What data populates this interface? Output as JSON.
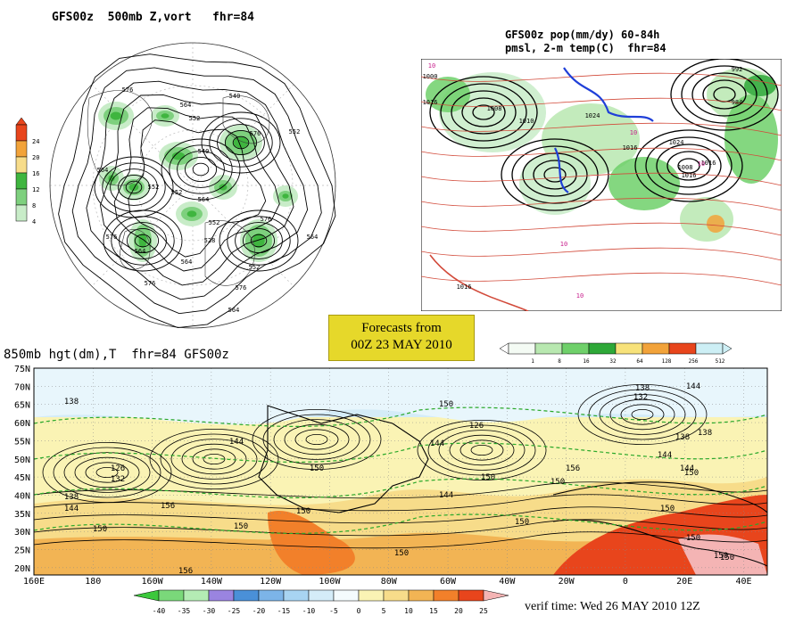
{
  "panel_500mb": {
    "title": "GFS00z  500mb Z,vort   fhr=84",
    "contour_labels": [
      "576",
      "564",
      "552",
      "540",
      "576",
      "552",
      "564",
      "552",
      "540",
      "552",
      "564",
      "576",
      "552",
      "576",
      "528",
      "564",
      "564",
      "552",
      "576",
      "576",
      "564",
      "564"
    ],
    "scale_values": [
      "24",
      "20",
      "16",
      "12",
      "8",
      "4"
    ],
    "scale_colors": [
      "#e8451c",
      "#f2a33a",
      "#f7dc8a",
      "#3fb53f",
      "#7ed07e",
      "#c8ecc8"
    ]
  },
  "panel_pop": {
    "title_line1": "GFS00z pop(mm/dy) 60-84h",
    "title_line2": "pmsl, 2-m temp(C)  fhr=84",
    "contour_labels": [
      "10",
      "1000",
      "1016",
      "1008",
      "1010",
      "1024",
      "10",
      "1016",
      "1024",
      "1008",
      "1016",
      "10",
      "10",
      "10",
      "1016",
      "992",
      "984",
      "1016"
    ],
    "scale_values": [
      "1",
      "8",
      "16",
      "32",
      "64",
      "128",
      "256",
      "512"
    ],
    "scale_colors": [
      "#f4fbf4",
      "#b8e8b0",
      "#6fd06a",
      "#2ea838",
      "#f7e27a",
      "#f2a33a",
      "#e8451c",
      "#cdeff5"
    ]
  },
  "banner": {
    "line1": "Forecasts from",
    "line2": "00Z 23 MAY 2010"
  },
  "panel_850mb": {
    "title": "850mb hgt(dm),T  fhr=84 GFS00z",
    "lat_labels": [
      "75N",
      "70N",
      "65N",
      "60N",
      "55N",
      "50N",
      "45N",
      "40N",
      "35N",
      "30N",
      "25N",
      "20N"
    ],
    "lon_labels": [
      "160E",
      "180",
      "160W",
      "140W",
      "120W",
      "100W",
      "80W",
      "60W",
      "40W",
      "20W",
      "0",
      "20E",
      "40E"
    ],
    "contour_labels": [
      "138",
      "126",
      "132",
      "138",
      "144",
      "150",
      "144",
      "156",
      "150",
      "156",
      "150",
      "150",
      "150",
      "144",
      "150",
      "150",
      "138",
      "144",
      "132",
      "126",
      "150",
      "144",
      "150",
      "156",
      "150",
      "138",
      "144",
      "138",
      "150",
      "144",
      "150",
      "150",
      "150"
    ],
    "scale_values": [
      "-40",
      "-35",
      "-30",
      "-25",
      "-20",
      "-15",
      "-10",
      "-5",
      "0",
      "5",
      "10",
      "15",
      "20",
      "25"
    ],
    "scale_colors": [
      "#3cc83c",
      "#7ad87a",
      "#b4ecb4",
      "#9a84e0",
      "#4a90d8",
      "#7cb4e8",
      "#a8d4f2",
      "#d4ecf8",
      "#f4fbfd",
      "#faf3b4",
      "#f7dc8a",
      "#f2b454",
      "#f2802a",
      "#e8451c",
      "#f4b4b4"
    ],
    "verif_time": "verif time: Wed 26 MAY 2010 12Z"
  }
}
